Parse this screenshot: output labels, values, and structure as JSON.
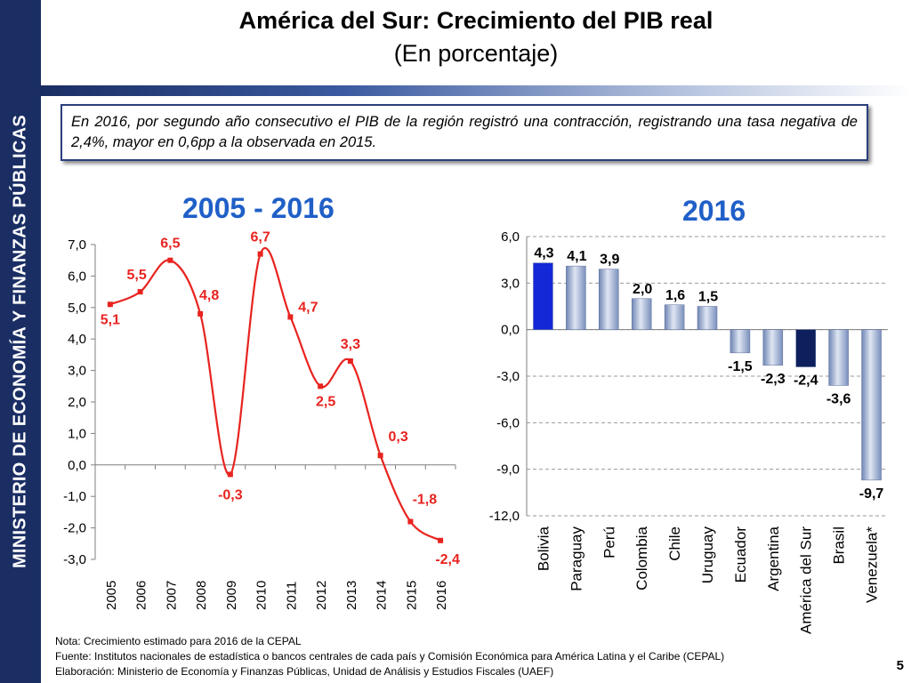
{
  "sidebar": {
    "label": "MINISTERIO DE ECONOMÍA Y FINANZAS PÚBLICAS"
  },
  "header": {
    "title": "América del Sur: Crecimiento del PIB real",
    "subtitle": "(En porcentaje)"
  },
  "note": "En 2016, por segundo año consecutivo el PIB de la región registró una contracción, registrando una tasa negativa de 2,4%, mayor en 0,6pp a la observada en 2015.",
  "footer": {
    "line1": "Nota: Crecimiento estimado para 2016 de la CEPAL",
    "line2": "Fuente: Institutos nacionales de estadística o bancos centrales de cada país y Comisión Económica para América Latina y el Caribe (CEPAL)",
    "line3": "Elaboración: Ministerio de Economía y Finanzas Públicas, Unidad de Análisis y Estudios Fiscales (UAEF)"
  },
  "page_number": "5",
  "colors": {
    "line": "#e8231f",
    "label": "#e8231f",
    "title": "#1f5fc7",
    "bolivia": "#1428d8",
    "region": "#0d1f5c",
    "bars": "#9aaed0"
  },
  "chart_data": [
    {
      "type": "line",
      "title": "2005 - 2016",
      "x": [
        "2005",
        "2006",
        "2007",
        "2008",
        "2009",
        "2010",
        "2011",
        "2012",
        "2013",
        "2014",
        "2015",
        "2016"
      ],
      "values": [
        5.1,
        5.5,
        6.5,
        4.8,
        -0.3,
        6.7,
        4.7,
        2.5,
        3.3,
        0.3,
        -1.8,
        -2.4
      ],
      "labels": [
        "5,1",
        "5,5",
        "6,5",
        "4,8",
        "-0,3",
        "6,7",
        "4,7",
        "2,5",
        "3,3",
        "0,3",
        "-1,8",
        "-2,4"
      ],
      "yticks": [
        "7,0",
        "6,0",
        "5,0",
        "4,0",
        "3,0",
        "2,0",
        "1,0",
        "0,0",
        "-1,0",
        "-2,0",
        "-3,0"
      ],
      "ylim": [
        -3,
        7
      ],
      "xlabel": "",
      "ylabel": ""
    },
    {
      "type": "bar",
      "title": "2016",
      "categories": [
        "Bolivia",
        "Paraguay",
        "Perú",
        "Colombia",
        "Chile",
        "Uruguay",
        "Ecuador",
        "Argentina",
        "América del Sur",
        "Brasil",
        "Venezuela*"
      ],
      "values": [
        4.3,
        4.1,
        3.9,
        2.0,
        1.6,
        1.5,
        -1.5,
        -2.3,
        -2.4,
        -3.6,
        -9.7
      ],
      "labels": [
        "4,3",
        "4,1",
        "3,9",
        "2,0",
        "1,6",
        "1,5",
        "-1,5",
        "-2,3",
        "-2,4",
        "-3,6",
        "-9,7"
      ],
      "yticks": [
        "6,0",
        "3,0",
        "0,0",
        "-3,0",
        "-6,0",
        "-9,0",
        "-12,0"
      ],
      "ylim": [
        -12,
        6
      ],
      "grid": true,
      "xlabel": "",
      "ylabel": ""
    }
  ]
}
